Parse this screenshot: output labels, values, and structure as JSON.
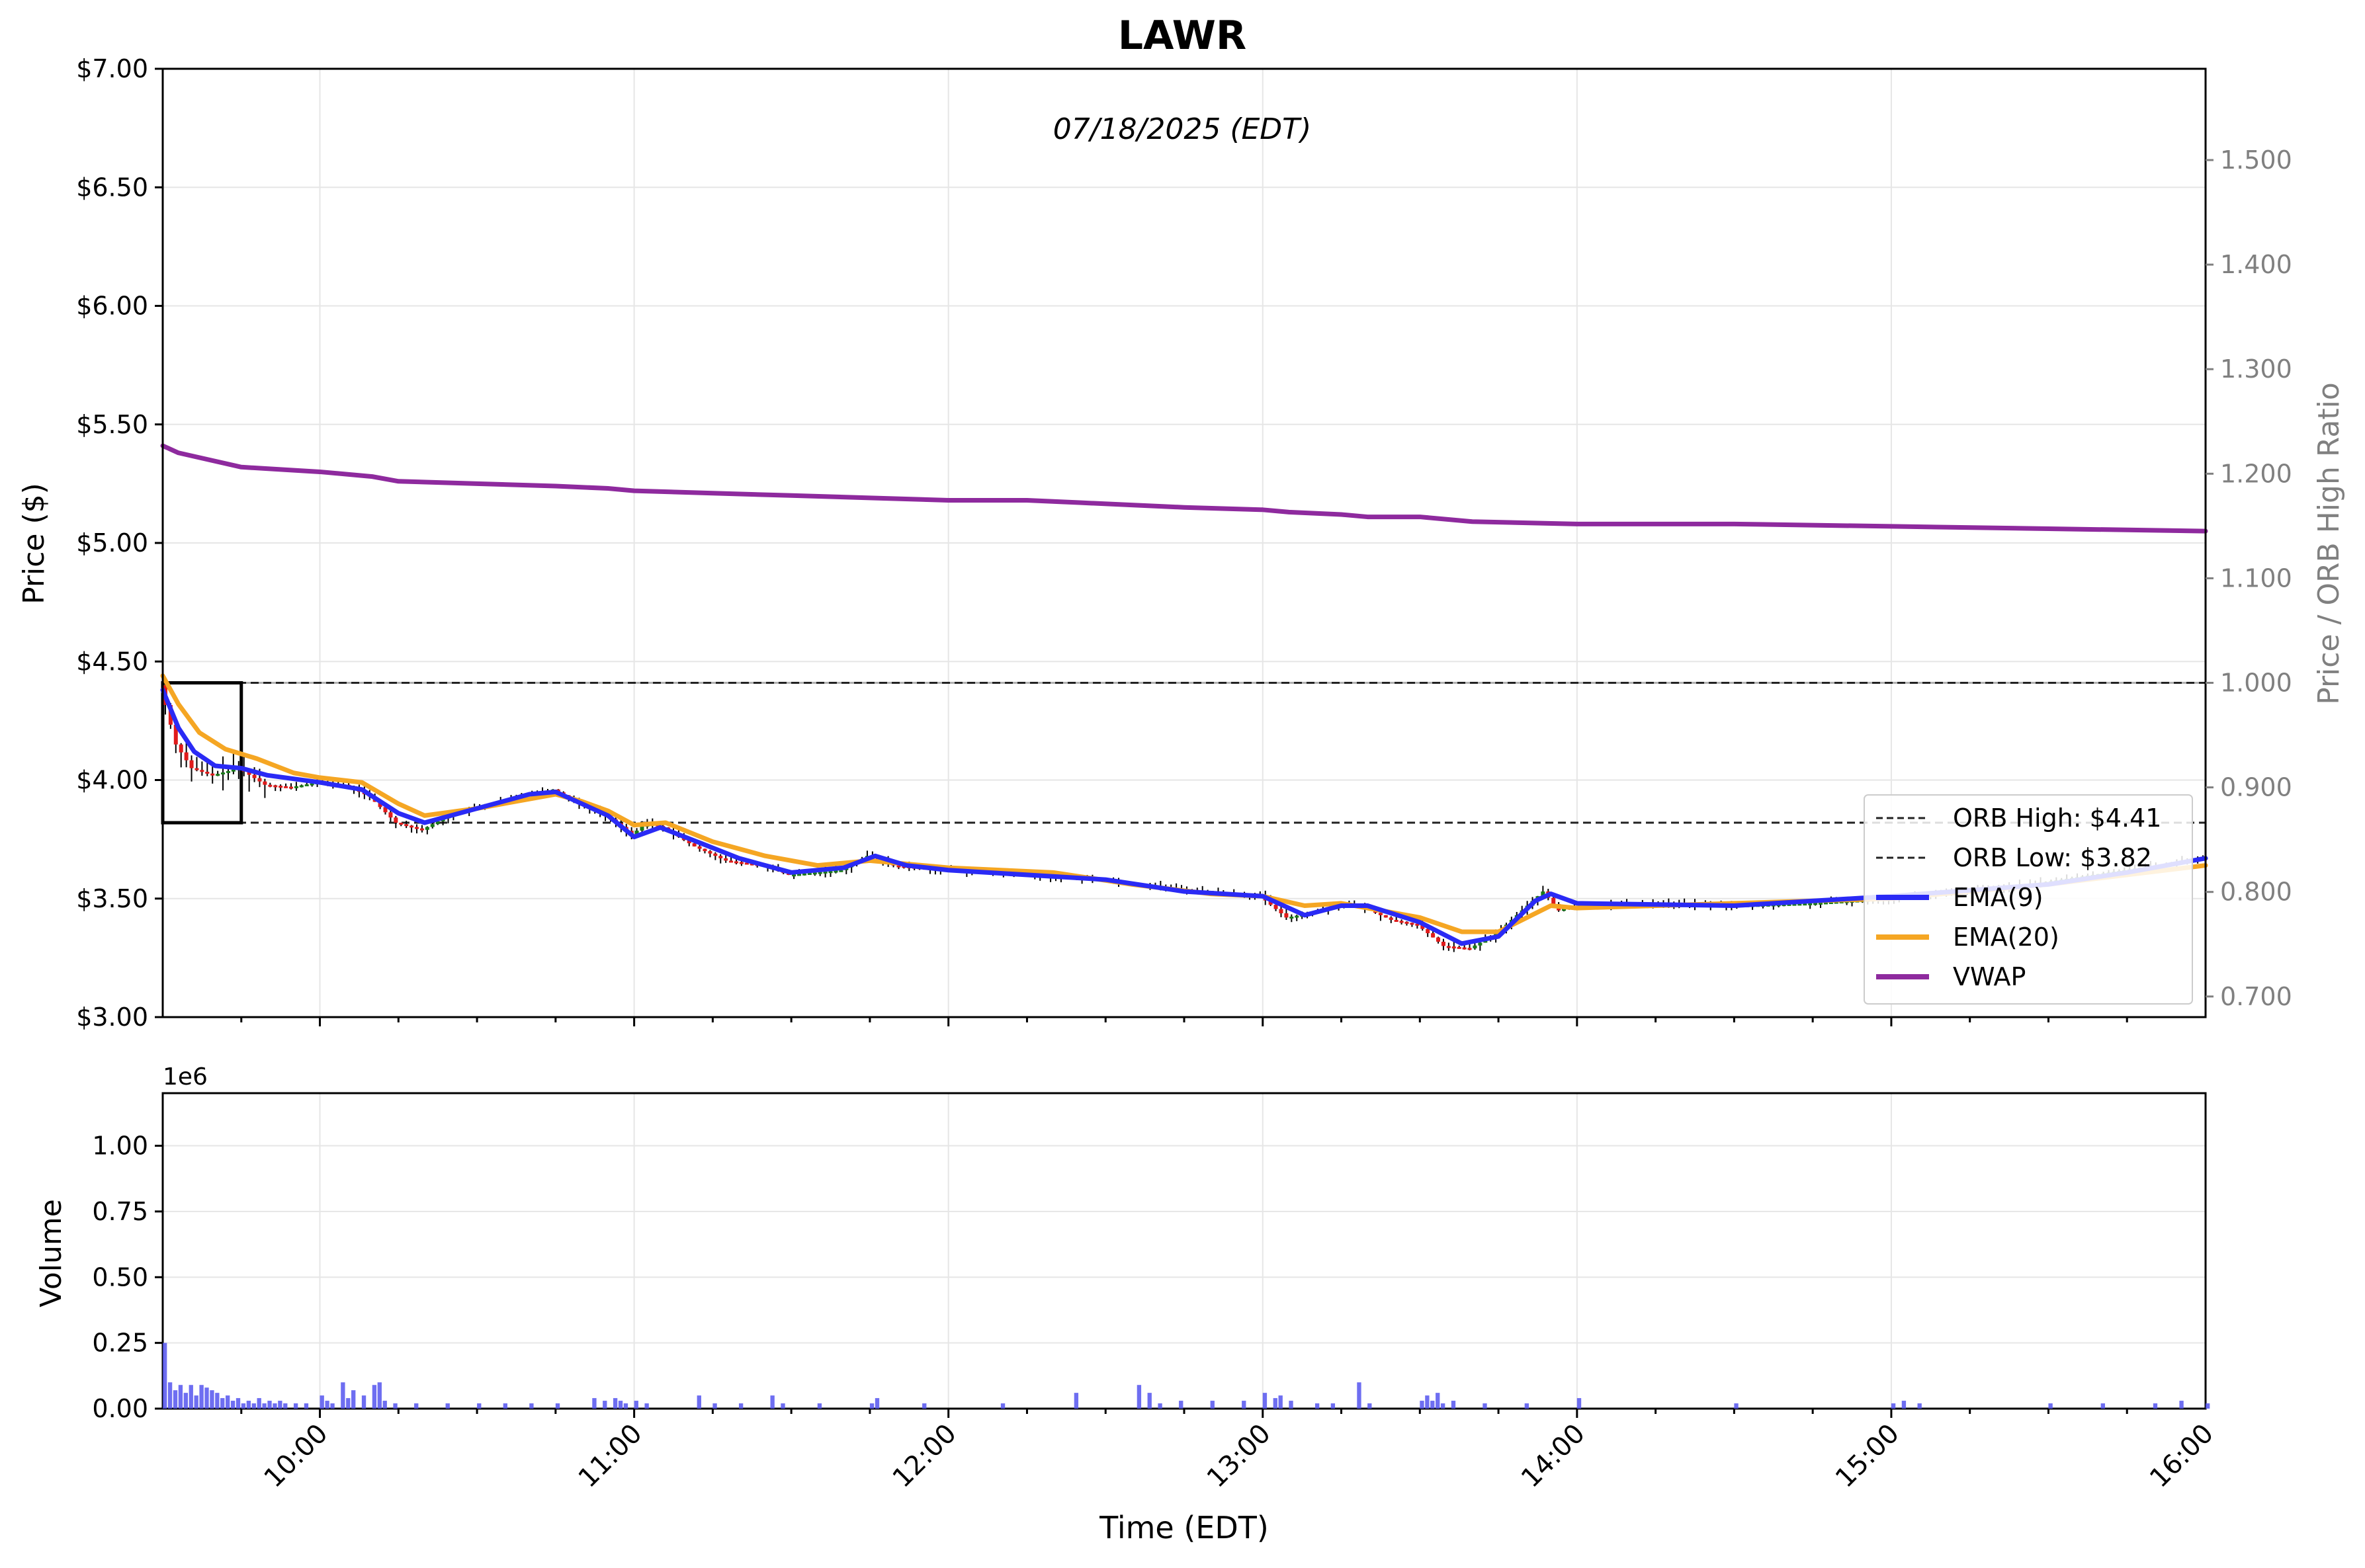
{
  "chart_data": {
    "type": "candlestick",
    "title": "LAWR",
    "subtitle": "07/18/2025 (EDT)",
    "xlabel": "Time (EDT)",
    "x_ticks": [
      "10:00",
      "11:00",
      "12:00",
      "13:00",
      "14:00",
      "15:00",
      "16:00"
    ],
    "x_range": [
      "09:30",
      "16:00"
    ],
    "price_axis": {
      "label": "Price ($)",
      "ylim": [
        3.0,
        7.0
      ],
      "ticks": [
        "$3.00",
        "$3.50",
        "$4.00",
        "$4.50",
        "$5.00",
        "$5.50",
        "$6.00",
        "$6.50",
        "$7.00"
      ]
    },
    "ratio_axis": {
      "label": "Price / ORB High Ratio",
      "ticks": [
        "0.700",
        "0.800",
        "0.900",
        "1.000",
        "1.100",
        "1.200",
        "1.300",
        "1.400",
        "1.500"
      ],
      "reference_line": 1.0
    },
    "volume_axis": {
      "label": "Volume",
      "scale_label": "1e6",
      "ylim": [
        0,
        1.2
      ],
      "ticks": [
        "0.00",
        "0.25",
        "0.50",
        "0.75",
        "1.00"
      ]
    },
    "orb": {
      "high": 4.41,
      "low": 3.82,
      "window": [
        "09:30",
        "09:45"
      ]
    },
    "legend": {
      "position": "center-right",
      "entries": [
        {
          "label": "ORB High: $4.41",
          "style": "dashed",
          "color": "#222222"
        },
        {
          "label": "ORB Low: $3.82",
          "style": "dashed",
          "color": "#222222"
        },
        {
          "label": "EMA(9)",
          "style": "solid",
          "color": "#2a2af5"
        },
        {
          "label": "EMA(20)",
          "style": "solid",
          "color": "#f5a623"
        },
        {
          "label": "VWAP",
          "style": "solid",
          "color": "#8e2a9e"
        }
      ]
    },
    "colors": {
      "up": "#1a7a1a",
      "down": "#e01b1b",
      "ema9": "#2a2af5",
      "ema20": "#f5a623",
      "vwap": "#8e2a9e",
      "volume": "#5555ee",
      "grid": "#e6e6e6"
    },
    "price_path": [
      [
        "09:30",
        4.4
      ],
      [
        "09:33",
        4.15
      ],
      [
        "09:36",
        4.05
      ],
      [
        "09:40",
        4.02
      ],
      [
        "09:45",
        4.05
      ],
      [
        "09:50",
        3.98
      ],
      [
        "09:55",
        3.97
      ],
      [
        "10:00",
        3.99
      ],
      [
        "10:05",
        3.98
      ],
      [
        "10:10",
        3.93
      ],
      [
        "10:15",
        3.82
      ],
      [
        "10:20",
        3.79
      ],
      [
        "10:25",
        3.85
      ],
      [
        "10:30",
        3.88
      ],
      [
        "10:40",
        3.94
      ],
      [
        "10:45",
        3.96
      ],
      [
        "10:50",
        3.9
      ],
      [
        "10:55",
        3.85
      ],
      [
        "11:00",
        3.77
      ],
      [
        "11:03",
        3.82
      ],
      [
        "11:06",
        3.8
      ],
      [
        "11:12",
        3.72
      ],
      [
        "11:18",
        3.66
      ],
      [
        "11:25",
        3.64
      ],
      [
        "11:30",
        3.6
      ],
      [
        "11:40",
        3.62
      ],
      [
        "11:45",
        3.68
      ],
      [
        "11:50",
        3.64
      ],
      [
        "12:00",
        3.62
      ],
      [
        "12:15",
        3.6
      ],
      [
        "12:30",
        3.58
      ],
      [
        "12:45",
        3.54
      ],
      [
        "13:00",
        3.51
      ],
      [
        "13:05",
        3.42
      ],
      [
        "13:10",
        3.44
      ],
      [
        "13:15",
        3.48
      ],
      [
        "13:20",
        3.46
      ],
      [
        "13:25",
        3.41
      ],
      [
        "13:30",
        3.39
      ],
      [
        "13:35",
        3.3
      ],
      [
        "13:40",
        3.29
      ],
      [
        "13:45",
        3.35
      ],
      [
        "13:50",
        3.45
      ],
      [
        "13:54",
        3.53
      ],
      [
        "13:57",
        3.45
      ],
      [
        "14:00",
        3.47
      ],
      [
        "14:15",
        3.48
      ],
      [
        "14:30",
        3.47
      ],
      [
        "14:45",
        3.48
      ],
      [
        "15:00",
        3.5
      ],
      [
        "15:15",
        3.53
      ],
      [
        "15:30",
        3.57
      ],
      [
        "15:45",
        3.62
      ],
      [
        "16:00",
        3.67
      ]
    ],
    "ema9_path": [
      [
        "09:30",
        4.38
      ],
      [
        "09:33",
        4.22
      ],
      [
        "09:36",
        4.12
      ],
      [
        "09:40",
        4.06
      ],
      [
        "09:45",
        4.05
      ],
      [
        "09:50",
        4.02
      ],
      [
        "10:00",
        3.99
      ],
      [
        "10:08",
        3.96
      ],
      [
        "10:15",
        3.86
      ],
      [
        "10:20",
        3.82
      ],
      [
        "10:30",
        3.88
      ],
      [
        "10:40",
        3.94
      ],
      [
        "10:45",
        3.95
      ],
      [
        "10:50",
        3.9
      ],
      [
        "10:55",
        3.85
      ],
      [
        "11:00",
        3.76
      ],
      [
        "11:05",
        3.8
      ],
      [
        "11:12",
        3.74
      ],
      [
        "11:20",
        3.67
      ],
      [
        "11:30",
        3.61
      ],
      [
        "11:40",
        3.63
      ],
      [
        "11:46",
        3.68
      ],
      [
        "11:52",
        3.64
      ],
      [
        "12:00",
        3.62
      ],
      [
        "12:30",
        3.58
      ],
      [
        "12:45",
        3.53
      ],
      [
        "13:00",
        3.51
      ],
      [
        "13:08",
        3.43
      ],
      [
        "13:15",
        3.47
      ],
      [
        "13:20",
        3.47
      ],
      [
        "13:30",
        3.4
      ],
      [
        "13:38",
        3.31
      ],
      [
        "13:45",
        3.34
      ],
      [
        "13:52",
        3.49
      ],
      [
        "13:55",
        3.52
      ],
      [
        "14:00",
        3.48
      ],
      [
        "14:30",
        3.47
      ],
      [
        "15:00",
        3.51
      ],
      [
        "15:30",
        3.56
      ],
      [
        "15:45",
        3.61
      ],
      [
        "16:00",
        3.67
      ]
    ],
    "ema20_path": [
      [
        "09:30",
        4.44
      ],
      [
        "09:33",
        4.32
      ],
      [
        "09:37",
        4.2
      ],
      [
        "09:42",
        4.13
      ],
      [
        "09:48",
        4.09
      ],
      [
        "09:55",
        4.03
      ],
      [
        "10:00",
        4.01
      ],
      [
        "10:08",
        3.99
      ],
      [
        "10:15",
        3.9
      ],
      [
        "10:20",
        3.85
      ],
      [
        "10:30",
        3.88
      ],
      [
        "10:40",
        3.92
      ],
      [
        "10:45",
        3.94
      ],
      [
        "10:50",
        3.91
      ],
      [
        "10:55",
        3.87
      ],
      [
        "11:00",
        3.81
      ],
      [
        "11:06",
        3.82
      ],
      [
        "11:15",
        3.74
      ],
      [
        "11:25",
        3.68
      ],
      [
        "11:35",
        3.64
      ],
      [
        "11:45",
        3.66
      ],
      [
        "12:00",
        3.63
      ],
      [
        "12:20",
        3.61
      ],
      [
        "12:35",
        3.56
      ],
      [
        "12:50",
        3.52
      ],
      [
        "13:00",
        3.51
      ],
      [
        "13:08",
        3.47
      ],
      [
        "13:15",
        3.48
      ],
      [
        "13:30",
        3.42
      ],
      [
        "13:38",
        3.36
      ],
      [
        "13:45",
        3.36
      ],
      [
        "13:55",
        3.47
      ],
      [
        "14:00",
        3.46
      ],
      [
        "14:30",
        3.48
      ],
      [
        "15:00",
        3.5
      ],
      [
        "15:30",
        3.56
      ],
      [
        "16:00",
        3.64
      ]
    ],
    "vwap_path": [
      [
        "09:30",
        5.41
      ],
      [
        "09:33",
        5.38
      ],
      [
        "09:45",
        5.32
      ],
      [
        "10:00",
        5.3
      ],
      [
        "10:10",
        5.28
      ],
      [
        "10:15",
        5.26
      ],
      [
        "10:30",
        5.25
      ],
      [
        "10:45",
        5.24
      ],
      [
        "10:55",
        5.23
      ],
      [
        "11:00",
        5.22
      ],
      [
        "11:15",
        5.21
      ],
      [
        "11:30",
        5.2
      ],
      [
        "11:45",
        5.19
      ],
      [
        "12:00",
        5.18
      ],
      [
        "12:15",
        5.18
      ],
      [
        "12:25",
        5.17
      ],
      [
        "12:35",
        5.16
      ],
      [
        "12:45",
        5.15
      ],
      [
        "13:00",
        5.14
      ],
      [
        "13:05",
        5.13
      ],
      [
        "13:15",
        5.12
      ],
      [
        "13:20",
        5.11
      ],
      [
        "13:30",
        5.11
      ],
      [
        "13:40",
        5.09
      ],
      [
        "14:00",
        5.08
      ],
      [
        "14:30",
        5.08
      ],
      [
        "15:00",
        5.07
      ],
      [
        "15:30",
        5.06
      ],
      [
        "16:00",
        5.05
      ]
    ],
    "volume_bars": [
      [
        "09:30",
        0.25
      ],
      [
        "09:31",
        0.1
      ],
      [
        "09:32",
        0.07
      ],
      [
        "09:33",
        0.09
      ],
      [
        "09:34",
        0.06
      ],
      [
        "09:35",
        0.09
      ],
      [
        "09:36",
        0.05
      ],
      [
        "09:37",
        0.09
      ],
      [
        "09:38",
        0.08
      ],
      [
        "09:39",
        0.07
      ],
      [
        "09:40",
        0.06
      ],
      [
        "09:41",
        0.04
      ],
      [
        "09:42",
        0.05
      ],
      [
        "09:43",
        0.03
      ],
      [
        "09:44",
        0.04
      ],
      [
        "09:45",
        0.02
      ],
      [
        "09:46",
        0.03
      ],
      [
        "09:47",
        0.02
      ],
      [
        "09:48",
        0.04
      ],
      [
        "09:49",
        0.02
      ],
      [
        "09:50",
        0.03
      ],
      [
        "09:51",
        0.02
      ],
      [
        "09:52",
        0.03
      ],
      [
        "09:53",
        0.02
      ],
      [
        "09:55",
        0.02
      ],
      [
        "09:57",
        0.02
      ],
      [
        "10:00",
        0.05
      ],
      [
        "10:01",
        0.03
      ],
      [
        "10:02",
        0.02
      ],
      [
        "10:04",
        0.1
      ],
      [
        "10:05",
        0.04
      ],
      [
        "10:06",
        0.07
      ],
      [
        "10:08",
        0.05
      ],
      [
        "10:10",
        0.09
      ],
      [
        "10:11",
        0.1
      ],
      [
        "10:12",
        0.03
      ],
      [
        "10:14",
        0.02
      ],
      [
        "10:18",
        0.02
      ],
      [
        "10:24",
        0.02
      ],
      [
        "10:30",
        0.02
      ],
      [
        "10:35",
        0.02
      ],
      [
        "10:40",
        0.02
      ],
      [
        "10:45",
        0.02
      ],
      [
        "10:52",
        0.04
      ],
      [
        "10:54",
        0.03
      ],
      [
        "10:56",
        0.04
      ],
      [
        "10:57",
        0.03
      ],
      [
        "10:58",
        0.02
      ],
      [
        "11:00",
        0.03
      ],
      [
        "11:02",
        0.02
      ],
      [
        "11:12",
        0.05
      ],
      [
        "11:15",
        0.02
      ],
      [
        "11:20",
        0.02
      ],
      [
        "11:26",
        0.05
      ],
      [
        "11:28",
        0.02
      ],
      [
        "11:35",
        0.02
      ],
      [
        "11:45",
        0.02
      ],
      [
        "11:46",
        0.04
      ],
      [
        "11:55",
        0.02
      ],
      [
        "12:10",
        0.02
      ],
      [
        "12:24",
        0.06
      ],
      [
        "12:36",
        0.09
      ],
      [
        "12:38",
        0.06
      ],
      [
        "12:40",
        0.02
      ],
      [
        "12:44",
        0.03
      ],
      [
        "12:50",
        0.03
      ],
      [
        "12:56",
        0.03
      ],
      [
        "13:00",
        0.06
      ],
      [
        "13:02",
        0.04
      ],
      [
        "13:03",
        0.05
      ],
      [
        "13:05",
        0.03
      ],
      [
        "13:10",
        0.02
      ],
      [
        "13:13",
        0.02
      ],
      [
        "13:18",
        0.1
      ],
      [
        "13:20",
        0.02
      ],
      [
        "13:30",
        0.03
      ],
      [
        "13:31",
        0.05
      ],
      [
        "13:32",
        0.03
      ],
      [
        "13:33",
        0.06
      ],
      [
        "13:34",
        0.02
      ],
      [
        "13:36",
        0.03
      ],
      [
        "13:42",
        0.02
      ],
      [
        "13:50",
        0.02
      ],
      [
        "14:00",
        0.04
      ],
      [
        "14:30",
        0.02
      ],
      [
        "15:00",
        0.02
      ],
      [
        "15:02",
        0.03
      ],
      [
        "15:05",
        0.02
      ],
      [
        "15:30",
        0.02
      ],
      [
        "15:40",
        0.02
      ],
      [
        "15:50",
        0.02
      ],
      [
        "15:55",
        0.03
      ],
      [
        "16:00",
        0.02
      ]
    ]
  }
}
